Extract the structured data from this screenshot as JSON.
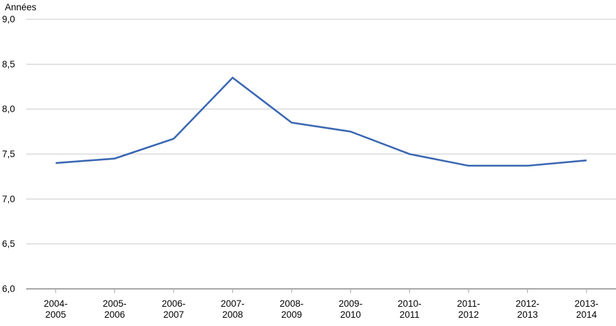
{
  "chart_data": {
    "type": "line",
    "title": "",
    "ylabel": "Années",
    "xlabel": "",
    "categories": [
      "2004-2005",
      "2005-2006",
      "2006-2007",
      "2007-2008",
      "2008-2009",
      "2009-2010",
      "2010-2011",
      "2011-2012",
      "2012-2013",
      "2013-2014"
    ],
    "values": [
      7.4,
      7.45,
      7.67,
      8.35,
      7.85,
      7.75,
      7.5,
      7.37,
      7.37,
      7.43
    ],
    "ylim": [
      6.0,
      9.0
    ],
    "ytick_step": 0.5,
    "decimal_separator": ",",
    "grid": true,
    "legend_position": "none",
    "colors": {
      "line": "#3A67B2",
      "gridline": "#C9C9C9",
      "axis": "#A6A6A6",
      "text": "#000000"
    }
  }
}
